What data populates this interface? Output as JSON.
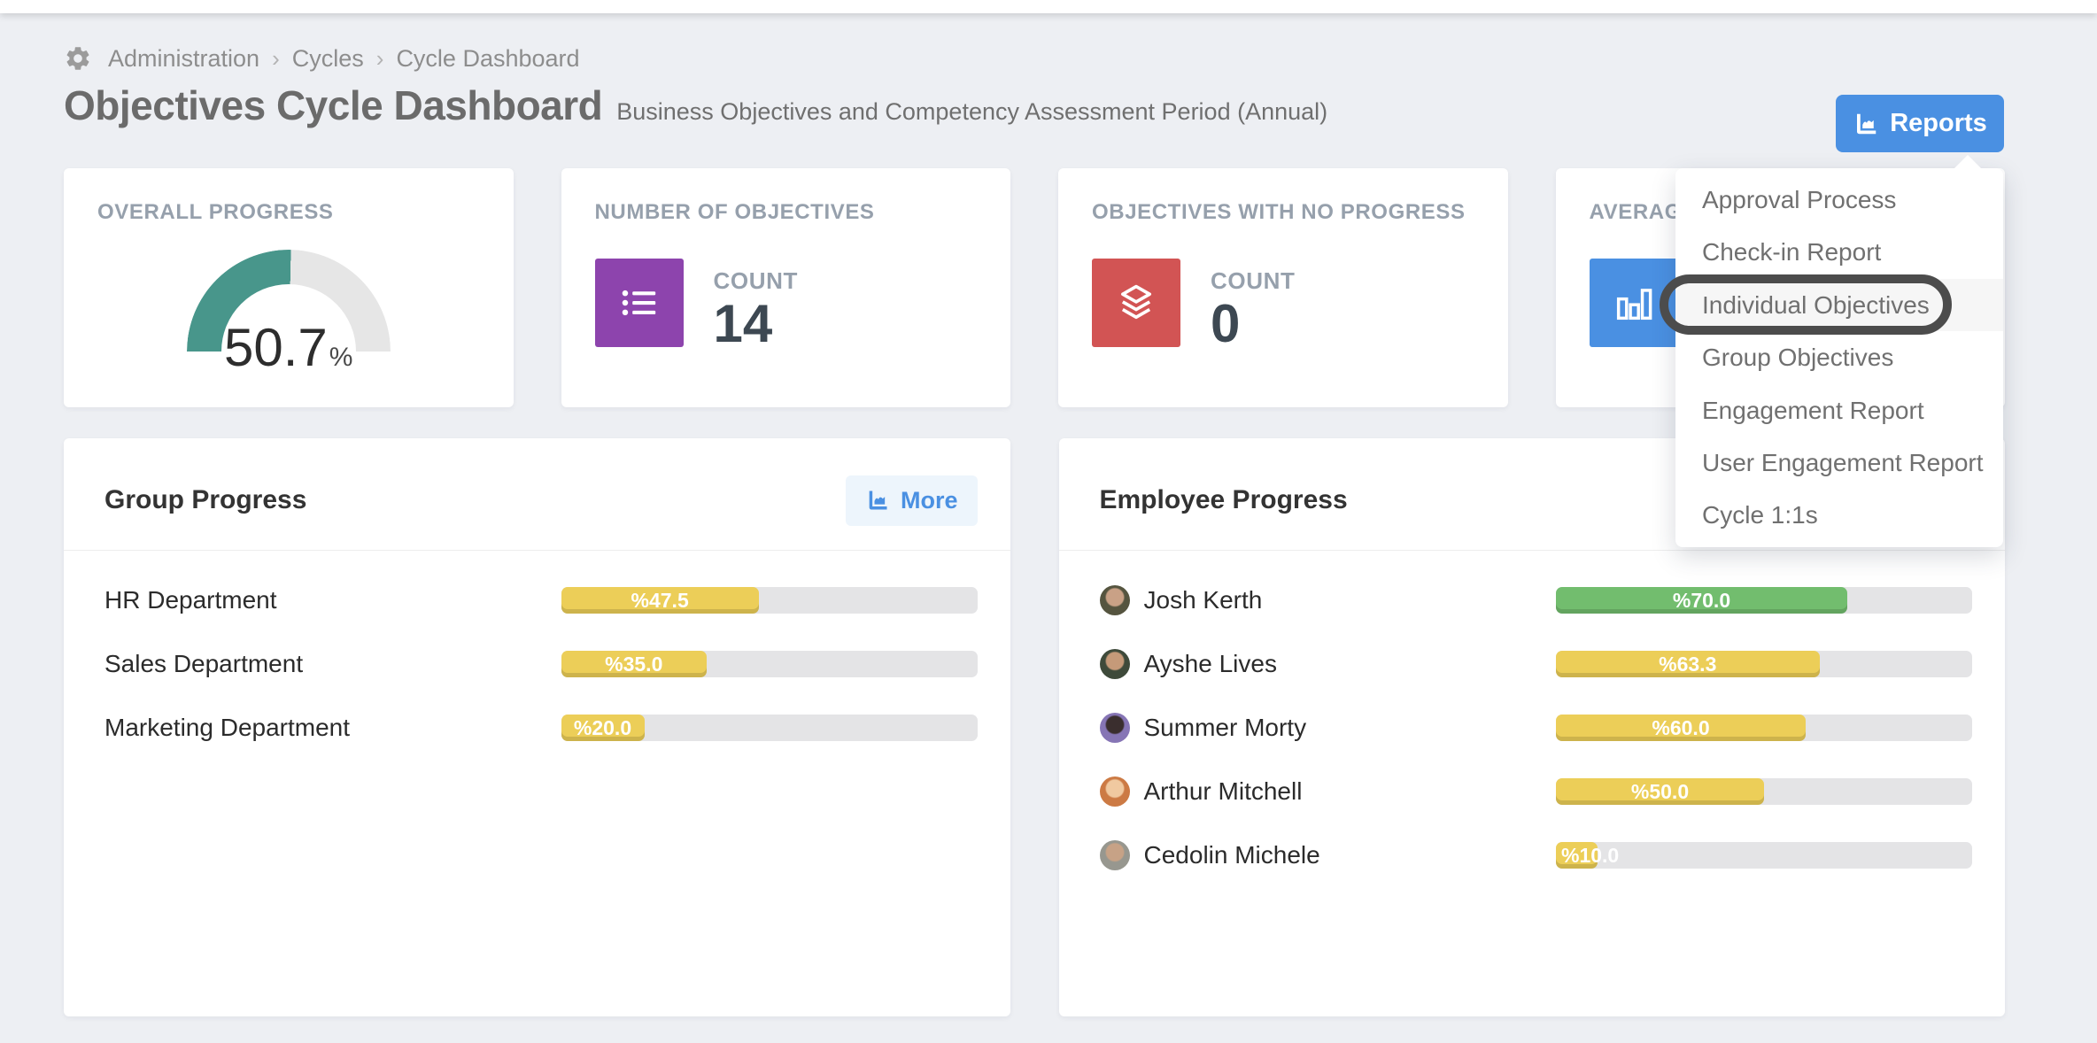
{
  "breadcrumb": {
    "items": [
      "Administration",
      "Cycles",
      "Cycle Dashboard"
    ],
    "separator": "›"
  },
  "header": {
    "title": "Objectives Cycle Dashboard",
    "subtitle": "Business Objectives and Competency Assessment Period (Annual)",
    "reports_button": "Reports"
  },
  "stats": {
    "overall": {
      "title": "OVERALL PROGRESS",
      "value": "50.7",
      "unit": "%",
      "percent": 50.7,
      "gauge_color": "#48968b",
      "track_color": "#e6e6e6"
    },
    "cards": [
      {
        "title": "NUMBER OF OBJECTIVES",
        "label": "COUNT",
        "value": "14",
        "icon": "list-icon",
        "color": "#8d44ad"
      },
      {
        "title": "OBJECTIVES WITH NO PROGRESS",
        "label": "COUNT",
        "value": "0",
        "icon": "layers-icon",
        "color": "#d25454"
      },
      {
        "title": "AVERAGE",
        "label": "",
        "value": "",
        "icon": "bar-chart-icon",
        "color": "#4a90e2"
      }
    ]
  },
  "reports_menu": {
    "items": [
      "Approval Process",
      "Check-in Report",
      "Individual Objectives",
      "Group Objectives",
      "Engagement Report",
      "User Engagement Report",
      "Cycle 1:1s"
    ],
    "highlighted": "Individual Objectives"
  },
  "group_progress": {
    "title": "Group Progress",
    "more_button": "More",
    "rows": [
      {
        "label": "HR Department",
        "value": "%47.5",
        "percent": 47.5,
        "color": "#ecce58"
      },
      {
        "label": "Sales Department",
        "value": "%35.0",
        "percent": 35.0,
        "color": "#ecce58"
      },
      {
        "label": "Marketing Department",
        "value": "%20.0",
        "percent": 20.0,
        "color": "#ecce58"
      }
    ]
  },
  "employee_progress": {
    "title": "Employee Progress",
    "rows": [
      {
        "name": "Josh Kerth",
        "value": "%70.0",
        "percent": 70.0,
        "color": "#72bd6e",
        "avatar": {
          "bg": "#55543f",
          "face": "#c9a186"
        }
      },
      {
        "name": "Ayshe Lives",
        "value": "%63.3",
        "percent": 63.3,
        "color": "#ecce58",
        "avatar": {
          "bg": "#3e4a3a",
          "face": "#c59a79"
        }
      },
      {
        "name": "Summer Morty",
        "value": "%60.0",
        "percent": 60.0,
        "color": "#ecce58",
        "avatar": {
          "bg": "#8675b5",
          "face": "#3a2e2e"
        }
      },
      {
        "name": "Arthur Mitchell",
        "value": "%50.0",
        "percent": 50.0,
        "color": "#ecce58",
        "avatar": {
          "bg": "#cc7a44",
          "face": "#f0c9a0"
        }
      },
      {
        "name": "Cedolin Michele",
        "value": "%10.0",
        "percent": 10.0,
        "color": "#ecce58",
        "avatar": {
          "bg": "#97978f",
          "face": "#c7a286"
        }
      }
    ]
  },
  "colors": {
    "accent_blue": "#4a90e2",
    "icon_purple": "#8d44ad",
    "icon_red": "#d25454",
    "gauge_teal": "#48968b",
    "bar_yellow": "#ecce58",
    "bar_green": "#72bd6e",
    "page_bg": "#edeff3"
  }
}
